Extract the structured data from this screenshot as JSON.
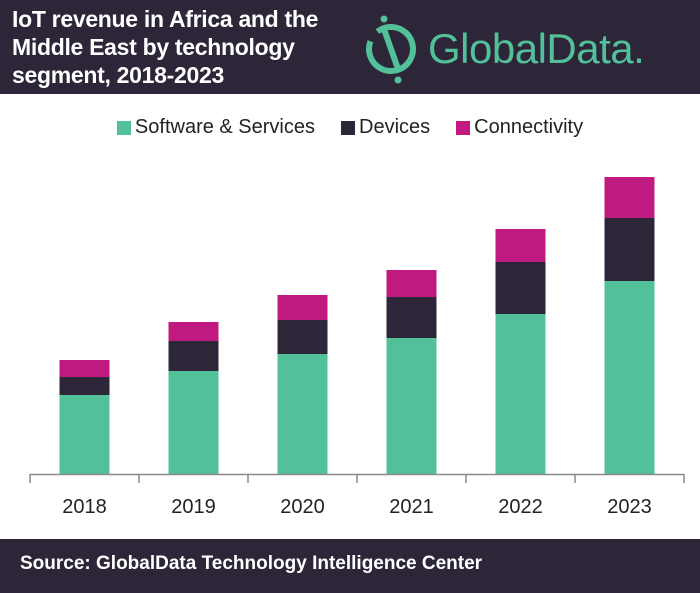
{
  "header": {
    "title_lines": [
      "IoT revenue in Africa and the",
      "Middle East by technology",
      "segment, 2018-2023"
    ],
    "logo_text": "GlobalData.",
    "logo_icon": "globaldata-logo-icon"
  },
  "footer": {
    "source": "Source:  GlobalData Technology Intelligence Center"
  },
  "colors": {
    "header_bg": "#2c2638",
    "software": "#52c19a",
    "devices": "#2c2638",
    "connectivity": "#c0197f",
    "brand_green": "#52c19a"
  },
  "chart_data": {
    "type": "bar",
    "stacked": true,
    "title": "IoT revenue in Africa and the Middle East by technology segment, 2018-2023",
    "xlabel": "",
    "ylabel": "",
    "y_axis_shown": false,
    "units_note": "relative units (no y-axis shown)",
    "categories": [
      "2018",
      "2019",
      "2020",
      "2021",
      "2022",
      "2023"
    ],
    "series": [
      {
        "name": "Software & Services",
        "color": "#52c19a",
        "values": [
          79,
          103,
          120,
          136,
          160,
          193
        ]
      },
      {
        "name": "Devices",
        "color": "#2c2638",
        "values": [
          18,
          30,
          34,
          41,
          52,
          63
        ]
      },
      {
        "name": "Connectivity",
        "color": "#c0197f",
        "values": [
          17,
          19,
          25,
          27,
          33,
          41
        ]
      }
    ],
    "ylim": [
      0,
      300
    ],
    "grid": false,
    "legend": "top-center"
  }
}
